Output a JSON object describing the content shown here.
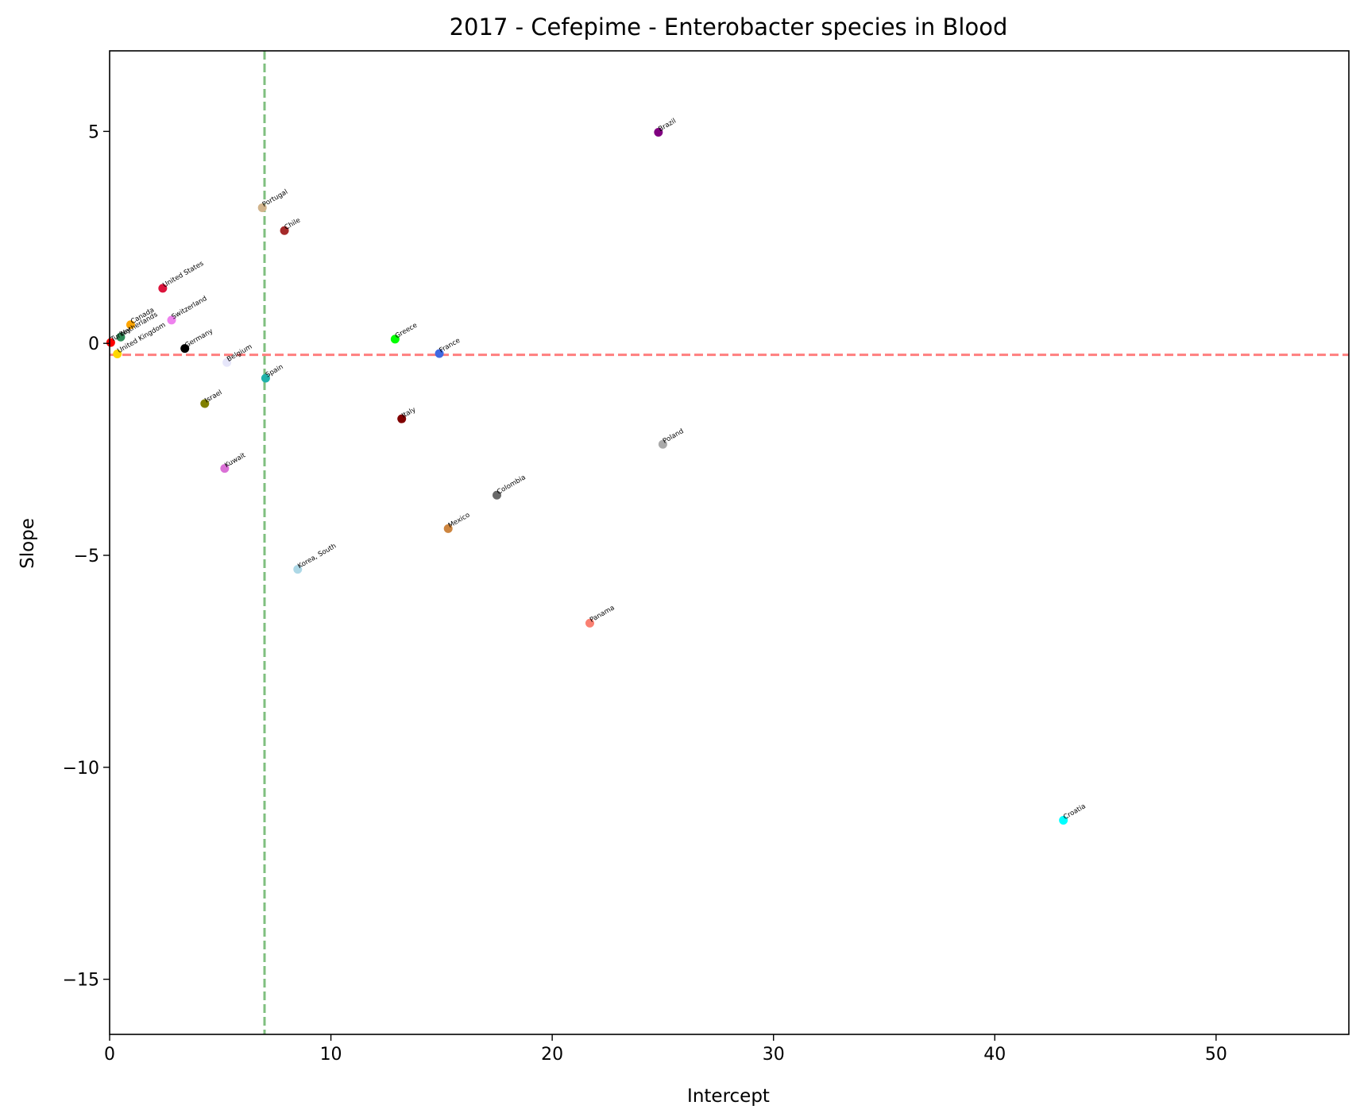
{
  "chart_data": {
    "type": "scatter",
    "title": "2017 - Cefepime - Enterobacter species in Blood",
    "xlabel": "Intercept",
    "ylabel": "Slope",
    "xlim": [
      0,
      56
    ],
    "ylim": [
      -16.3,
      6.9
    ],
    "xticks": [
      0,
      10,
      20,
      30,
      40,
      50
    ],
    "yticks": [
      5,
      0,
      -5,
      -10,
      -15
    ],
    "xtick_labels": [
      "0",
      "10",
      "20",
      "30",
      "40",
      "50"
    ],
    "ytick_labels": [
      "5",
      "0",
      "−10",
      "−15"
    ],
    "ytick_labels_full": [
      "5",
      "0",
      "−5",
      "−10",
      "−15"
    ],
    "grid": false,
    "reference_lines": [
      {
        "orientation": "vertical",
        "value": 7.0,
        "color": "#7fbf7f",
        "style": "dashed"
      },
      {
        "orientation": "horizontal",
        "value": -0.27,
        "color": "#ff7f7f",
        "style": "dashed"
      }
    ],
    "points": [
      {
        "label": "Brazil",
        "x": 24.8,
        "y": 4.98,
        "color": "#800080"
      },
      {
        "label": "Portugal",
        "x": 6.9,
        "y": 3.2,
        "color": "#d2b48c"
      },
      {
        "label": "Chile",
        "x": 7.9,
        "y": 2.66,
        "color": "#a52a2a"
      },
      {
        "label": "United States",
        "x": 2.4,
        "y": 1.3,
        "color": "#dc143c"
      },
      {
        "label": "Switzerland",
        "x": 2.8,
        "y": 0.55,
        "color": "#ee82ee"
      },
      {
        "label": "Canada",
        "x": 0.95,
        "y": 0.44,
        "color": "#ffa500"
      },
      {
        "label": "Netherlands",
        "x": 0.5,
        "y": 0.15,
        "color": "#2e8b57"
      },
      {
        "label": "Turkey",
        "x": 0.05,
        "y": 0.02,
        "color": "#ff0000"
      },
      {
        "label": "United Kingdom",
        "x": 0.35,
        "y": -0.25,
        "color": "#ffd700"
      },
      {
        "label": "Germany",
        "x": 3.4,
        "y": -0.12,
        "color": "#000000"
      },
      {
        "label": "Belgium",
        "x": 5.3,
        "y": -0.45,
        "color": "#e6e6fa"
      },
      {
        "label": "Spain",
        "x": 7.05,
        "y": -0.82,
        "color": "#20b2aa"
      },
      {
        "label": "Greece",
        "x": 12.9,
        "y": 0.1,
        "color": "#00ff00"
      },
      {
        "label": "France",
        "x": 14.9,
        "y": -0.24,
        "color": "#4169e1"
      },
      {
        "label": "Israel",
        "x": 4.3,
        "y": -1.42,
        "color": "#808000"
      },
      {
        "label": "Italy",
        "x": 13.2,
        "y": -1.78,
        "color": "#800000"
      },
      {
        "label": "Poland",
        "x": 25.0,
        "y": -2.38,
        "color": "#a9a9a9"
      },
      {
        "label": "Kuwait",
        "x": 5.2,
        "y": -2.95,
        "color": "#da70d6"
      },
      {
        "label": "Colombia",
        "x": 17.5,
        "y": -3.58,
        "color": "#696969"
      },
      {
        "label": "Mexico",
        "x": 15.3,
        "y": -4.37,
        "color": "#cd853f"
      },
      {
        "label": "Korea, South",
        "x": 8.5,
        "y": -5.33,
        "color": "#add8e6"
      },
      {
        "label": "Panama",
        "x": 21.7,
        "y": -6.6,
        "color": "#fa8072"
      },
      {
        "label": "Croatia",
        "x": 43.1,
        "y": -11.25,
        "color": "#00ffff"
      }
    ]
  }
}
